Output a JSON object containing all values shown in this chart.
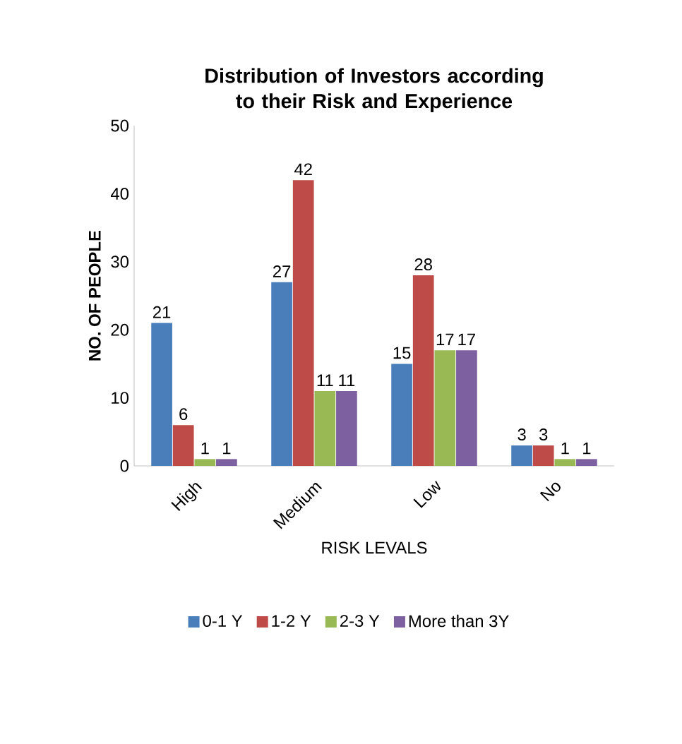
{
  "chart_data": {
    "type": "bar",
    "title": "Distribution of Investors according to their Risk and Experience",
    "xlabel": "RISK LEVALS",
    "ylabel": "NO. OF PEOPLE",
    "categories": [
      "High",
      "Medium",
      "Low",
      "No"
    ],
    "series": [
      {
        "name": "0-1 Y",
        "color": "#4a7ebb",
        "values": [
          21,
          27,
          15,
          3
        ]
      },
      {
        "name": "1-2 Y",
        "color": "#be4b48",
        "values": [
          6,
          42,
          28,
          3
        ]
      },
      {
        "name": "2-3 Y",
        "color": "#98b954",
        "values": [
          1,
          11,
          17,
          1
        ]
      },
      {
        "name": "More than 3Y",
        "color": "#7d60a0",
        "values": [
          1,
          11,
          17,
          1
        ]
      }
    ],
    "ylim": [
      0,
      50
    ],
    "yticks": [
      0,
      10,
      20,
      30,
      40,
      50
    ],
    "grid": false,
    "legend": "bottom",
    "data_labels": true
  }
}
